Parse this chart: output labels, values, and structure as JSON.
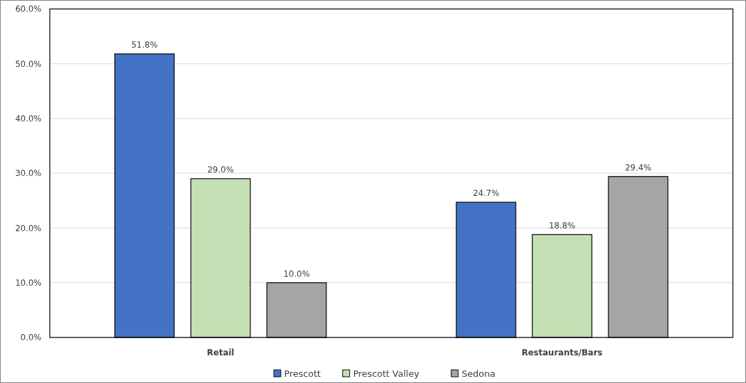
{
  "chart_data": {
    "type": "bar",
    "categories": [
      "Retail",
      "Restaurants/Bars"
    ],
    "series": [
      {
        "name": "Prescott",
        "color": "#4472c4",
        "values": [
          51.8,
          24.7
        ],
        "value_labels": [
          "51.8%",
          "24.7%"
        ]
      },
      {
        "name": "Prescott Valley",
        "color": "#c5e0b4",
        "values": [
          29.0,
          18.8
        ],
        "value_labels": [
          "29.0%",
          "18.8%"
        ]
      },
      {
        "name": "Sedona",
        "color": "#a5a5a5",
        "values": [
          10.0,
          29.4
        ],
        "value_labels": [
          "10.0%",
          "29.4%"
        ]
      }
    ],
    "ylim": [
      0,
      60
    ],
    "yticks": [
      {
        "value": 0,
        "label": "0.0%"
      },
      {
        "value": 10,
        "label": "10.0%"
      },
      {
        "value": 20,
        "label": "20.0%"
      },
      {
        "value": 30,
        "label": "30.0%"
      },
      {
        "value": 40,
        "label": "40.0%"
      },
      {
        "value": 50,
        "label": "50.0%"
      },
      {
        "value": 60,
        "label": "60.0%"
      }
    ],
    "grid": "y",
    "legend": "bottom"
  }
}
